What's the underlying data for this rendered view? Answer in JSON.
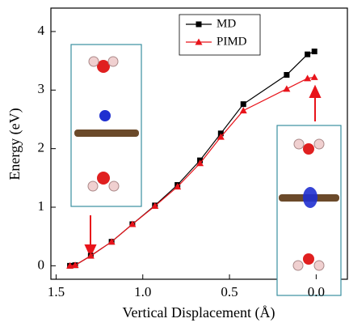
{
  "chart_data": {
    "type": "line",
    "x": [
      1.42,
      1.39,
      1.3,
      1.18,
      1.06,
      0.93,
      0.8,
      0.67,
      0.55,
      0.42,
      0.17,
      0.05,
      0.01
    ],
    "series": [
      {
        "name": "MD",
        "color": "#000000",
        "marker": "square",
        "values": [
          0,
          0.01,
          0.17,
          0.41,
          0.71,
          1.03,
          1.38,
          1.8,
          2.26,
          2.76,
          3.26,
          3.61,
          3.66
        ]
      },
      {
        "name": "PIMD",
        "color": "#e8141b",
        "marker": "triangle",
        "values": [
          0,
          0.01,
          0.17,
          0.41,
          0.71,
          1.02,
          1.35,
          1.75,
          2.2,
          2.65,
          3.02,
          3.2,
          3.22
        ]
      }
    ],
    "xlabel": "Vertical Displacement (Å)",
    "ylabel": "Energy (eV)",
    "xlim": [
      1.53,
      -0.18
    ],
    "ylim": [
      -0.23,
      4.4
    ],
    "xticks": [
      1.5,
      {
        "value": 1,
        "label": "1.0"
      },
      0.5,
      {
        "value": 0,
        "label": "0.0"
      }
    ],
    "yticks": [
      0,
      1,
      2,
      3,
      4
    ],
    "legend": "top"
  }
}
